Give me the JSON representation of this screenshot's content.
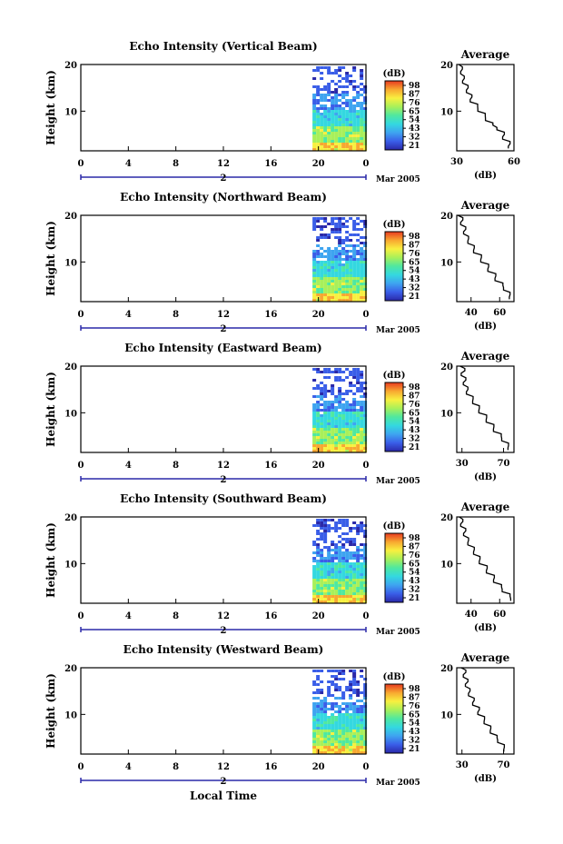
{
  "figure": {
    "xlabel": "Local Time",
    "date_label": "Mar 2005",
    "day_marker": "2",
    "avg_title": "Average",
    "avg_xlabel": "(dB)",
    "colorbar_title": "(dB)",
    "ylabel": "Height (km)",
    "colorbar_colors": [
      "#2a28a8",
      "#3a5ee8",
      "#3ea4f0",
      "#34d8e0",
      "#4fe8a0",
      "#a8f05a",
      "#f8f040",
      "#f8a830",
      "#e83a20"
    ]
  },
  "chart_data": [
    {
      "type": "heatmap",
      "title": "Echo Intensity (Vertical Beam)",
      "x_ticks": [
        "0",
        "4",
        "8",
        "12",
        "16",
        "20",
        "0"
      ],
      "y_ticks": [
        "20",
        "10"
      ],
      "xlim": [
        0,
        24
      ],
      "ylim": [
        1.5,
        20
      ],
      "data_start_hour": 19.5,
      "colorbar_ticks": [
        "98",
        "87",
        "76",
        "65",
        "54",
        "43",
        "32",
        "21"
      ],
      "average": {
        "x_ticks": [
          "30",
          "60"
        ],
        "xlim": [
          30,
          60
        ],
        "height": [
          2,
          3,
          4,
          5,
          6,
          7,
          8,
          9,
          10,
          11,
          12,
          13,
          14,
          15,
          16,
          17,
          18,
          19,
          20
        ],
        "value": [
          58,
          57,
          55,
          54,
          52,
          48,
          46,
          44,
          42,
          40,
          38,
          37,
          36,
          35,
          34,
          33,
          33,
          32,
          32
        ]
      }
    },
    {
      "type": "heatmap",
      "title": "Echo Intensity (Northward Beam)",
      "x_ticks": [
        "0",
        "4",
        "8",
        "12",
        "16",
        "20",
        "0"
      ],
      "y_ticks": [
        "20",
        "10"
      ],
      "xlim": [
        0,
        24
      ],
      "ylim": [
        1.5,
        20
      ],
      "data_start_hour": 19.5,
      "colorbar_ticks": [
        "98",
        "87",
        "76",
        "65",
        "54",
        "43",
        "32",
        "21"
      ],
      "average": {
        "x_ticks": [
          "40",
          "60"
        ],
        "xlim": [
          30,
          70
        ],
        "height": [
          2,
          3,
          4,
          5,
          6,
          7,
          8,
          9,
          10,
          11,
          12,
          13,
          14,
          15,
          16,
          17,
          18,
          19,
          20
        ],
        "value": [
          68,
          66,
          64,
          61,
          58,
          56,
          53,
          51,
          48,
          46,
          43,
          41,
          39,
          37,
          36,
          35,
          34,
          33,
          32
        ]
      }
    },
    {
      "type": "heatmap",
      "title": "Echo Intensity (Eastward Beam)",
      "x_ticks": [
        "0",
        "4",
        "8",
        "12",
        "16",
        "20",
        "0"
      ],
      "y_ticks": [
        "20",
        "10"
      ],
      "xlim": [
        0,
        24
      ],
      "ylim": [
        1.5,
        20
      ],
      "data_start_hour": 19.5,
      "colorbar_ticks": [
        "98",
        "87",
        "76",
        "65",
        "54",
        "43",
        "32",
        "21"
      ],
      "average": {
        "x_ticks": [
          "30",
          "70"
        ],
        "xlim": [
          25,
          80
        ],
        "height": [
          2,
          3,
          4,
          5,
          6,
          7,
          8,
          9,
          10,
          11,
          12,
          13,
          14,
          15,
          16,
          17,
          18,
          19,
          20
        ],
        "value": [
          76,
          73,
          70,
          66,
          62,
          59,
          55,
          52,
          48,
          45,
          42,
          39,
          36,
          34,
          33,
          32,
          31,
          31,
          30
        ]
      }
    },
    {
      "type": "heatmap",
      "title": "Echo Intensity (Southward Beam)",
      "x_ticks": [
        "0",
        "4",
        "8",
        "12",
        "16",
        "20",
        "0"
      ],
      "y_ticks": [
        "20",
        "10"
      ],
      "xlim": [
        0,
        24
      ],
      "ylim": [
        1.5,
        20
      ],
      "data_start_hour": 19.5,
      "colorbar_ticks": [
        "98",
        "87",
        "76",
        "65",
        "54",
        "43",
        "32",
        "21"
      ],
      "average": {
        "x_ticks": [
          "40",
          "60"
        ],
        "xlim": [
          30,
          70
        ],
        "height": [
          2,
          3,
          4,
          5,
          6,
          7,
          8,
          9,
          10,
          11,
          12,
          13,
          14,
          15,
          16,
          17,
          18,
          19,
          20
        ],
        "value": [
          69,
          66,
          63,
          60,
          57,
          55,
          52,
          50,
          47,
          45,
          43,
          41,
          39,
          37,
          36,
          35,
          34,
          33,
          33
        ]
      }
    },
    {
      "type": "heatmap",
      "title": "Echo Intensity (Westward Beam)",
      "x_ticks": [
        "0",
        "4",
        "8",
        "12",
        "16",
        "20",
        "0"
      ],
      "y_ticks": [
        "20",
        "10"
      ],
      "xlim": [
        0,
        24
      ],
      "ylim": [
        1.5,
        20
      ],
      "data_start_hour": 19.5,
      "colorbar_ticks": [
        "98",
        "87",
        "76",
        "65",
        "54",
        "43",
        "32",
        "21"
      ],
      "average": {
        "x_ticks": [
          "30",
          "70"
        ],
        "xlim": [
          25,
          80
        ],
        "height": [
          2,
          3,
          4,
          5,
          6,
          7,
          8,
          9,
          10,
          11,
          12,
          13,
          14,
          15,
          16,
          17,
          18,
          19,
          20
        ],
        "value": [
          72,
          69,
          66,
          62,
          59,
          56,
          53,
          50,
          47,
          45,
          42,
          40,
          38,
          36,
          35,
          34,
          33,
          32,
          31
        ]
      }
    }
  ]
}
